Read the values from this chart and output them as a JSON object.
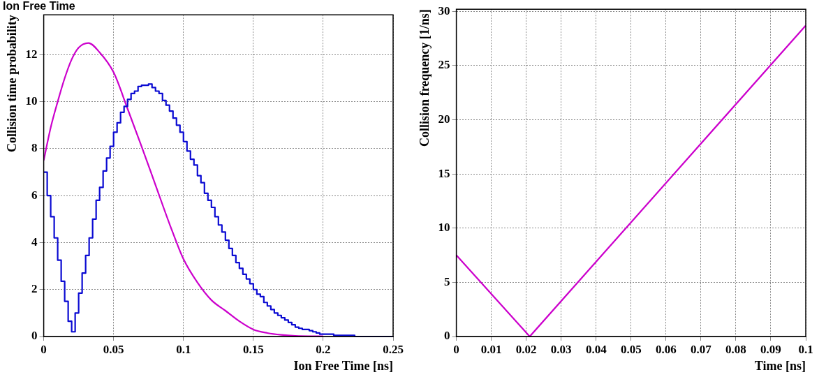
{
  "chart_data": [
    {
      "type": "histogram",
      "title": "Ion Free Time",
      "xlabel": "Ion Free Time [ns]",
      "ylabel": "Collision time probability",
      "bins": [
        0,
        0.0025,
        0.005,
        0.0075,
        0.01,
        0.0125,
        0.015,
        0.0175,
        0.02,
        0.0225,
        0.025,
        0.0275,
        0.03,
        0.0325,
        0.035,
        0.0375,
        0.04,
        0.0425,
        0.045,
        0.0475,
        0.05,
        0.0525,
        0.055,
        0.0575,
        0.06,
        0.0625,
        0.065,
        0.0675,
        0.07,
        0.0725,
        0.075,
        0.0775,
        0.08,
        0.0825,
        0.085,
        0.0875,
        0.09,
        0.0925,
        0.095,
        0.0975,
        0.1,
        0.1025,
        0.105,
        0.1075,
        0.11,
        0.1125,
        0.115,
        0.1175,
        0.12,
        0.1225,
        0.125,
        0.1275,
        0.13,
        0.1325,
        0.135,
        0.1375,
        0.14,
        0.1425,
        0.145,
        0.1475,
        0.15,
        0.1525,
        0.155,
        0.1575,
        0.16,
        0.1625,
        0.165,
        0.1675,
        0.17,
        0.1725,
        0.175,
        0.1775,
        0.18,
        0.1825,
        0.185,
        0.1875,
        0.19,
        0.1925,
        0.195,
        0.1975,
        0.2,
        0.2025,
        0.205,
        0.2075,
        0.21,
        0.2125,
        0.215,
        0.2175,
        0.22,
        0.2225,
        0.225,
        0.2275,
        0.23,
        0.2325,
        0.235,
        0.2375,
        0.24,
        0.2425,
        0.245,
        0.2475,
        0.25
      ],
      "series": [
        {
          "type": "histogram",
          "color": "#0a0ad2",
          "values": [
            7.0,
            6.0,
            5.1,
            4.2,
            3.25,
            2.35,
            1.5,
            0.65,
            0.2,
            1.0,
            1.85,
            2.7,
            3.45,
            4.2,
            5.0,
            5.8,
            6.35,
            7.05,
            7.6,
            8.1,
            8.7,
            9.1,
            9.55,
            9.8,
            10.1,
            10.35,
            10.45,
            10.65,
            10.7,
            10.7,
            10.75,
            10.6,
            10.45,
            10.35,
            10.05,
            9.85,
            9.6,
            9.3,
            9.0,
            8.7,
            8.3,
            7.9,
            7.55,
            7.3,
            6.85,
            6.55,
            6.1,
            5.8,
            5.5,
            5.1,
            4.75,
            4.45,
            4.1,
            3.75,
            3.45,
            3.15,
            2.9,
            2.65,
            2.45,
            2.25,
            2.0,
            1.8,
            1.7,
            1.45,
            1.3,
            1.15,
            1.0,
            0.9,
            0.8,
            0.7,
            0.6,
            0.5,
            0.4,
            0.35,
            0.3,
            0.3,
            0.25,
            0.2,
            0.15,
            0.1,
            0.1,
            0.1,
            0.1,
            0.05,
            0.05,
            0.05,
            0.05,
            0.05,
            0.05,
            0,
            0,
            0,
            0,
            0,
            0,
            0,
            0,
            0,
            0,
            0
          ]
        },
        {
          "type": "line",
          "color": "#cc00cc",
          "x": [
            0,
            0.005,
            0.01,
            0.015,
            0.02,
            0.025,
            0.032,
            0.04,
            0.05,
            0.06,
            0.07,
            0.08,
            0.09,
            0.1,
            0.11,
            0.12,
            0.13,
            0.14,
            0.15,
            0.16,
            0.17,
            0.18,
            0.2
          ],
          "values": [
            7.5,
            8.9,
            10.0,
            11.0,
            11.8,
            12.3,
            12.5,
            12.1,
            11.25,
            9.7,
            8.1,
            6.45,
            4.8,
            3.3,
            2.3,
            1.55,
            1.1,
            0.65,
            0.3,
            0.15,
            0.07,
            0.03,
            0.01
          ]
        }
      ],
      "xlim": [
        0,
        0.25
      ],
      "xticks": [
        0,
        0.05,
        0.1,
        0.15,
        0.2,
        0.25
      ],
      "ylim": [
        0,
        13.7
      ],
      "yticks": [
        0,
        2,
        4,
        6,
        8,
        10,
        12
      ],
      "grid": true,
      "legend": false,
      "marker": "none"
    },
    {
      "type": "line",
      "xlabel": "Time [ns]",
      "ylabel": "Collision frequency [1/ns]",
      "series": [
        {
          "color": "#cc00cc",
          "x": [
            0,
            0.021,
            0.1
          ],
          "values": [
            7.5,
            0,
            28.7
          ]
        }
      ],
      "xlim": [
        0,
        0.1
      ],
      "xticks": [
        0,
        0.01,
        0.02,
        0.03,
        0.04,
        0.05,
        0.06,
        0.07,
        0.08,
        0.09,
        0.1
      ],
      "ylim": [
        0,
        30.2
      ],
      "yticks": [
        0,
        5,
        10,
        15,
        20,
        25,
        30
      ],
      "grid": true,
      "legend": false,
      "marker": "none"
    }
  ]
}
